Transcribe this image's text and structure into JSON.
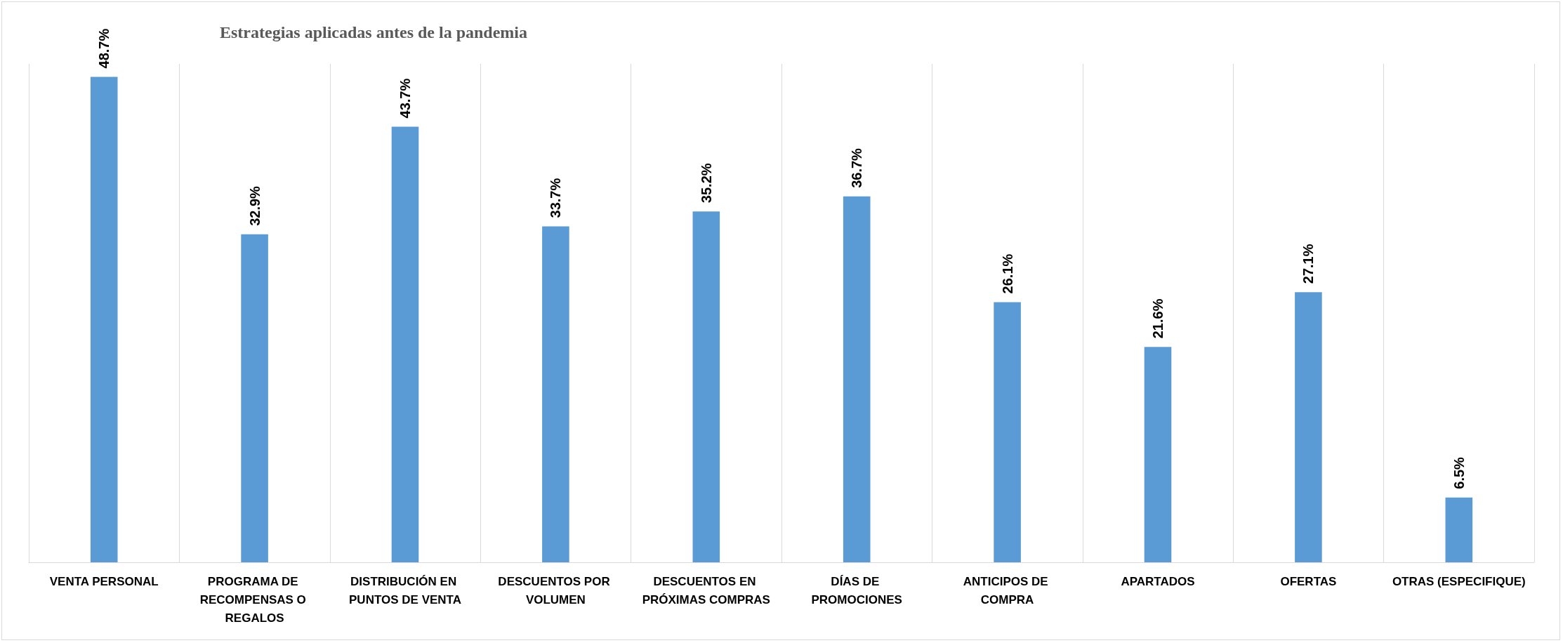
{
  "chart_data": {
    "type": "bar",
    "title": "Estrategias aplicadas antes de la pandemia",
    "categories": [
      "VENTA PERSONAL",
      "PROGRAMA DE RECOMPENSAS O REGALOS",
      "DISTRIBUCIÓN EN PUNTOS DE VENTA",
      "DESCUENTOS POR VOLUMEN",
      "DESCUENTOS EN PRÓXIMAS COMPRAS",
      "DÍAS DE PROMOCIONES",
      "ANTICIPOS DE COMPRA",
      "APARTADOS",
      "OFERTAS",
      "OTRAS (ESPECIFIQUE)"
    ],
    "values": [
      48.7,
      32.9,
      43.7,
      33.7,
      35.2,
      36.7,
      26.1,
      21.6,
      27.1,
      6.5
    ],
    "value_labels": [
      "48.7%",
      "32.9%",
      "43.7%",
      "33.7%",
      "35.2%",
      "36.7%",
      "26.1%",
      "21.6%",
      "27.1%",
      "6.5%"
    ],
    "color": "#5b9bd5",
    "grid": "x",
    "tick_labels": "x"
  }
}
